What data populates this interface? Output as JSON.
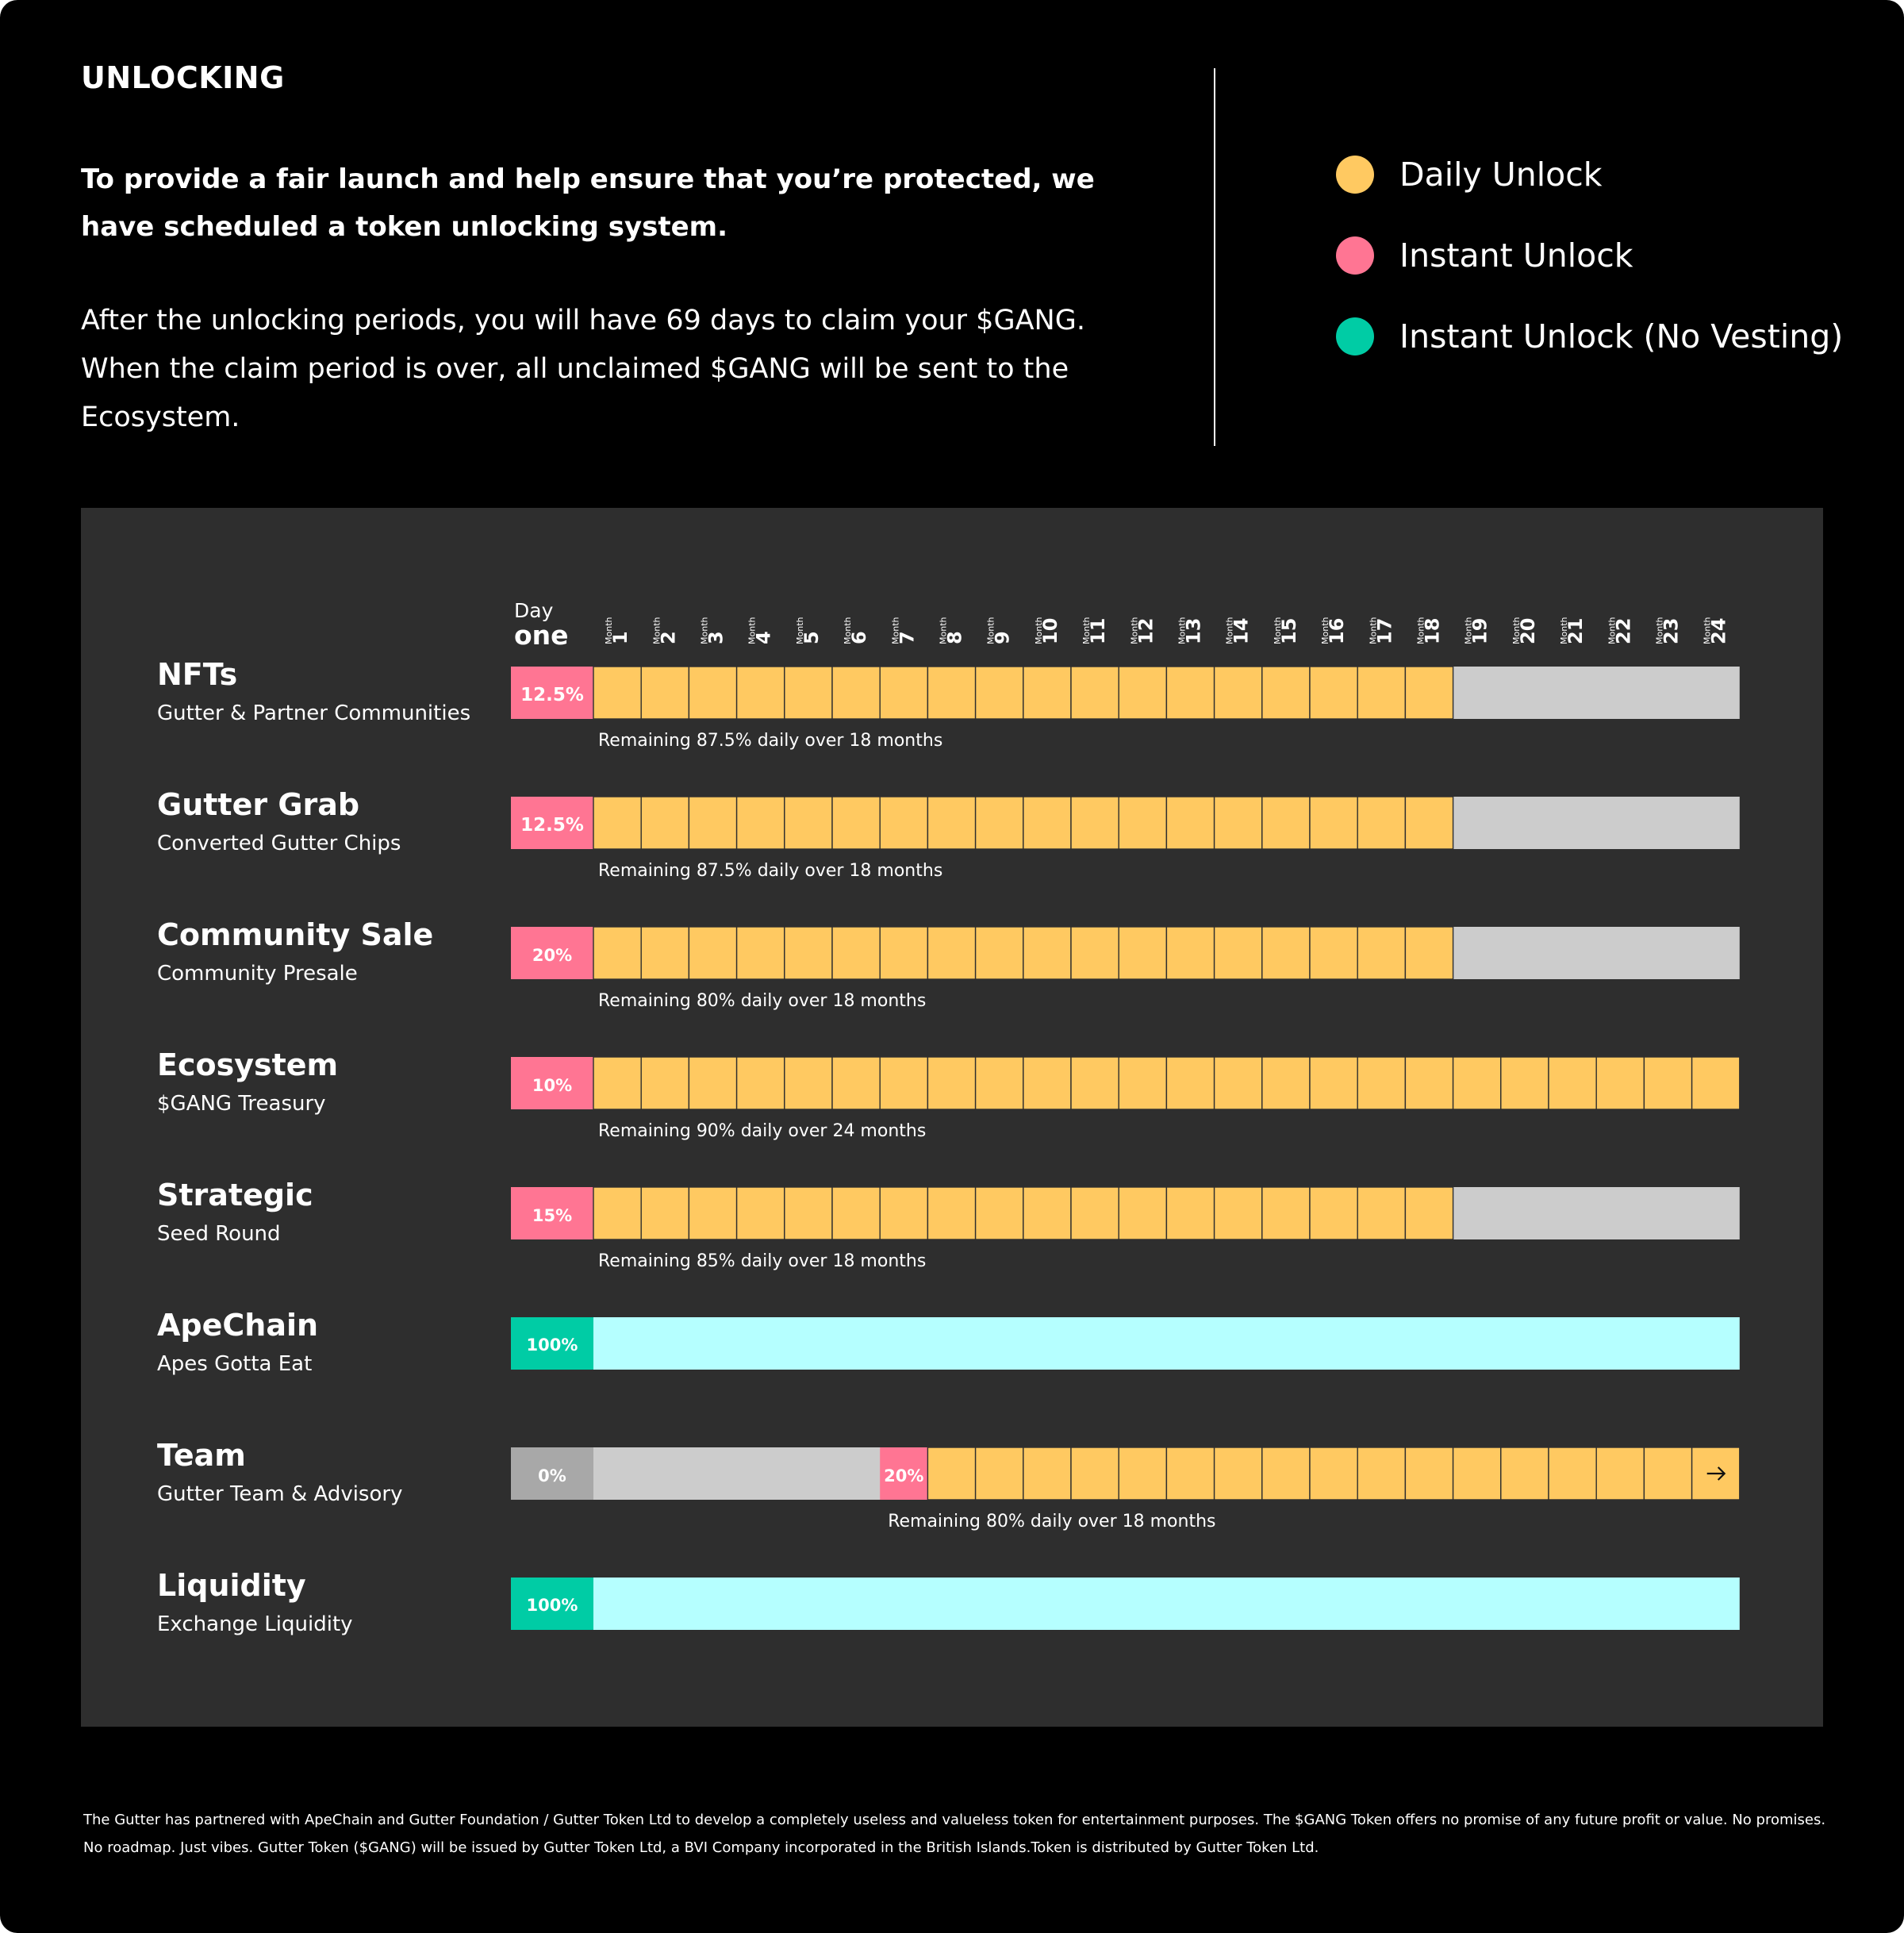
{
  "header": {
    "title": "UNLOCKING",
    "lead": "To provide a fair launch and help ensure that you’re protected, we have scheduled a token unlocking system.",
    "body": "After the unlocking periods, you will have 69 days to claim your $GANG. When the claim period is over, all unclaimed $GANG will be sent to the Ecosystem."
  },
  "legend": [
    {
      "label": "Daily Unlock",
      "color": "#ffc961"
    },
    {
      "label": "Instant Unlock",
      "color": "#ff7593"
    },
    {
      "label": "Instant Unlock (No Vesting)",
      "color": "#00cca5"
    }
  ],
  "colors": {
    "daily": "#ffc961",
    "instant": "#ff7593",
    "no_vesting": "#00cca5",
    "no_vesting_fill": "#b5ffff",
    "locked": "#cccccc",
    "zero": "#a8a8a8",
    "panel": "#2e2e2e"
  },
  "footer": "The Gutter has partnered with ApeChain and Gutter Foundation / Gutter Token Ltd to develop a completely useless and valueless token for entertainment purposes. The $GANG Token offers no promise of any future profit or value. No promises. No roadmap. Just vibes. Gutter Token ($GANG) will be issued by Gutter Token Ltd, a BVI Company incorporated in the British Islands.Token is distributed by Gutter Token Ltd.",
  "chart_data": {
    "type": "bar",
    "timeline": {
      "start_label_top": "Day",
      "start_label_bottom": "one",
      "month_word": "Month",
      "months": [
        "1",
        "2",
        "3",
        "4",
        "5",
        "6",
        "7",
        "8",
        "9",
        "10",
        "11",
        "12",
        "13",
        "14",
        "15",
        "16",
        "17",
        "18",
        "19",
        "20",
        "21",
        "22",
        "23",
        "24"
      ]
    },
    "rows": [
      {
        "name": "NFTs",
        "subtitle": "Gutter & Partner Communities",
        "instant_label": "12.5%",
        "instant_value": 12.5,
        "instant_kind": "instant",
        "lock_months": 0,
        "vesting_months": 18,
        "note": "Remaining 87.5% daily over 18 months"
      },
      {
        "name": "Gutter Grab",
        "subtitle": "Converted Gutter Chips",
        "instant_label": "12.5%",
        "instant_value": 12.5,
        "instant_kind": "instant",
        "lock_months": 0,
        "vesting_months": 18,
        "note": "Remaining 87.5% daily over 18 months"
      },
      {
        "name": "Community Sale",
        "subtitle": "Community Presale",
        "instant_label": "20%",
        "instant_value": 20,
        "instant_kind": "instant",
        "lock_months": 0,
        "vesting_months": 18,
        "note": "Remaining 80% daily over 18 months"
      },
      {
        "name": "Ecosystem",
        "subtitle": "$GANG Treasury",
        "instant_label": "10%",
        "instant_value": 10,
        "instant_kind": "instant",
        "lock_months": 0,
        "vesting_months": 24,
        "note": "Remaining 90% daily over 24 months"
      },
      {
        "name": "Strategic",
        "subtitle": "Seed Round",
        "instant_label": "15%",
        "instant_value": 15,
        "instant_kind": "instant",
        "lock_months": 0,
        "vesting_months": 18,
        "note": "Remaining 85% daily over 18 months"
      },
      {
        "name": "ApeChain",
        "subtitle": "Apes Gotta Eat",
        "instant_label": "100%",
        "instant_value": 100,
        "instant_kind": "no_vesting",
        "lock_months": 0,
        "vesting_months": 0,
        "note": ""
      },
      {
        "name": "Team",
        "subtitle": "Gutter Team & Advisory",
        "instant_label": "0%",
        "instant_value": 0,
        "instant_kind": "zero",
        "lock_months": 6,
        "cliff_label": "20%",
        "cliff_value": 20,
        "vesting_months": 18,
        "continues": true,
        "note": "Remaining 80% daily over 18 months"
      },
      {
        "name": "Liquidity",
        "subtitle": "Exchange Liquidity",
        "instant_label": "100%",
        "instant_value": 100,
        "instant_kind": "no_vesting",
        "lock_months": 0,
        "vesting_months": 0,
        "note": ""
      }
    ]
  }
}
